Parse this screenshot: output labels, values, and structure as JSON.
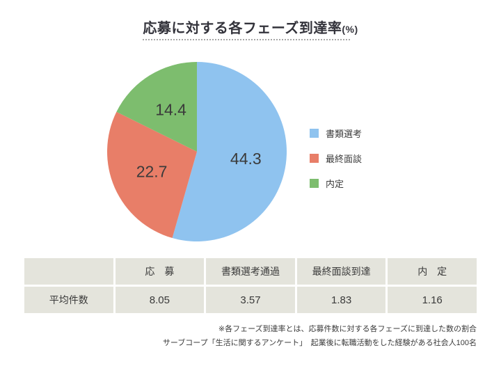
{
  "title": {
    "text": "応募に対する各フェーズ到達率",
    "suffix": "(%)"
  },
  "chart_data": {
    "type": "pie",
    "title": "応募に対する各フェーズ到達率(%)",
    "slices": [
      {
        "label": "書類選考",
        "value": 44.3,
        "color": "#8FC3EF"
      },
      {
        "label": "最終面談",
        "value": 22.7,
        "color": "#E87E68"
      },
      {
        "label": "内定",
        "value": 14.4,
        "color": "#7DBD6E"
      }
    ],
    "value_label_color": "#3B3B3B",
    "start_angle_deg": 0,
    "direction": "clockwise",
    "legend_position": "right"
  },
  "table": {
    "columns": [
      "",
      "応　募",
      "書類選考通過",
      "最終面談到達",
      "内　定"
    ],
    "rows": [
      {
        "label": "平均件数",
        "values": [
          "8.05",
          "3.57",
          "1.83",
          "1.16"
        ]
      }
    ],
    "cell_bg": "#E4E4DC"
  },
  "footnotes": {
    "line1": "※各フェーズ到達率とは、応募件数に対する各フェーズに到達した数の割合",
    "line2": "サーブコープ「生活に関するアンケート」　起業後に転職活動をした経験がある社会人100名"
  }
}
